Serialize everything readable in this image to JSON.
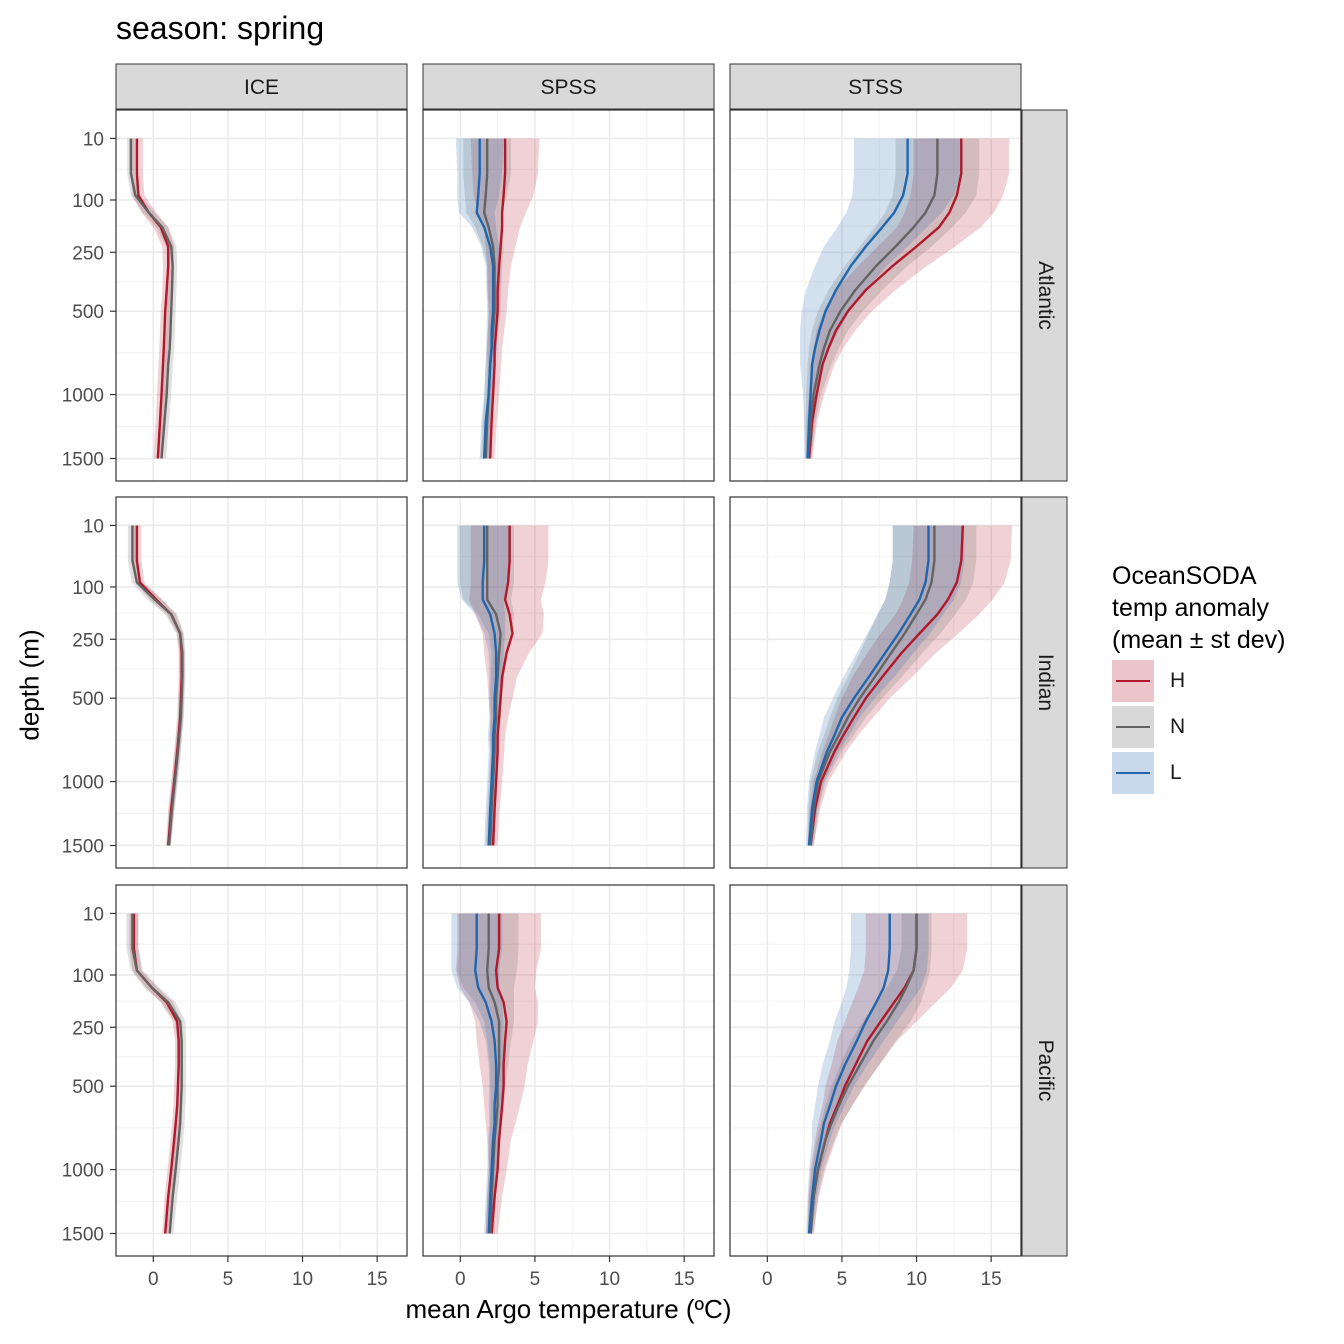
{
  "chart_data": {
    "type": "line",
    "title": "season: spring",
    "xlabel": "mean Argo temperature (ºC)",
    "ylabel": "depth (m)",
    "xlim": [
      -2.5,
      17
    ],
    "x_ticks": [
      0,
      5,
      10,
      15
    ],
    "y_scale": "sqrt",
    "y_reversed": true,
    "ylim": [
      0,
      1700
    ],
    "y_ticks": [
      10,
      100,
      250,
      500,
      1000,
      1500
    ],
    "grid": true,
    "legend_position": "right",
    "legend": {
      "title_lines": [
        "OceanSODA",
        "temp anomaly",
        "(mean ± st dev)"
      ],
      "entries": [
        {
          "key": "H",
          "label": "H",
          "color": "#b2182b"
        },
        {
          "key": "N",
          "label": "N",
          "color": "#636363"
        },
        {
          "key": "L",
          "label": "L",
          "color": "#2166ac"
        }
      ]
    },
    "facet_cols": [
      "ICE",
      "SPSS",
      "STSS"
    ],
    "facet_rows": [
      "Atlantic",
      "Indian",
      "Pacific"
    ],
    "depths": [
      10,
      50,
      90,
      130,
      170,
      230,
      300,
      400,
      500,
      600,
      700,
      800,
      1000,
      1200,
      1500
    ],
    "panels": [
      {
        "row": "Atlantic",
        "col": "ICE",
        "series": [
          {
            "name": "H",
            "mean": [
              -1.1,
              -1.1,
              -1.0,
              -0.3,
              0.5,
              1.0,
              1.0,
              0.9,
              0.8,
              0.75,
              0.7,
              0.65,
              0.55,
              0.45,
              0.3
            ],
            "sd": [
              0.4,
              0.4,
              0.4,
              0.5,
              0.5,
              0.4,
              0.35,
              0.3,
              0.3,
              0.3,
              0.3,
              0.3,
              0.3,
              0.3,
              0.3
            ]
          },
          {
            "name": "N",
            "mean": [
              -1.5,
              -1.5,
              -1.2,
              -0.3,
              0.6,
              1.2,
              1.3,
              1.25,
              1.2,
              1.15,
              1.1,
              1.0,
              0.9,
              0.75,
              0.55
            ],
            "sd": [
              0.25,
              0.25,
              0.3,
              0.4,
              0.4,
              0.35,
              0.3,
              0.3,
              0.3,
              0.3,
              0.3,
              0.3,
              0.3,
              0.3,
              0.3
            ]
          }
        ]
      },
      {
        "row": "Atlantic",
        "col": "SPSS",
        "series": [
          {
            "name": "H",
            "mean": [
              3.0,
              3.0,
              2.9,
              2.8,
              2.8,
              2.7,
              2.6,
              2.5,
              2.5,
              2.4,
              2.3,
              2.3,
              2.2,
              2.1,
              2.0
            ],
            "sd": [
              2.3,
              2.2,
              2.0,
              1.6,
              1.2,
              1.0,
              0.8,
              0.7,
              0.6,
              0.55,
              0.5,
              0.45,
              0.4,
              0.35,
              0.3
            ]
          },
          {
            "name": "N",
            "mean": [
              1.8,
              1.8,
              1.7,
              1.6,
              1.9,
              2.2,
              2.3,
              2.3,
              2.3,
              2.2,
              2.1,
              2.0,
              1.9,
              1.8,
              1.7
            ],
            "sd": [
              1.6,
              1.6,
              1.4,
              1.2,
              0.9,
              0.7,
              0.5,
              0.45,
              0.4,
              0.35,
              0.35,
              0.3,
              0.3,
              0.3,
              0.3
            ]
          },
          {
            "name": "L",
            "mean": [
              1.3,
              1.3,
              1.2,
              1.1,
              1.6,
              2.0,
              2.2,
              2.2,
              2.2,
              2.1,
              2.1,
              2.0,
              1.9,
              1.7,
              1.6
            ],
            "sd": [
              1.6,
              1.5,
              1.4,
              1.2,
              0.8,
              0.6,
              0.5,
              0.45,
              0.4,
              0.35,
              0.35,
              0.3,
              0.3,
              0.3,
              0.3
            ]
          }
        ]
      },
      {
        "row": "Atlantic",
        "col": "STSS",
        "series": [
          {
            "name": "H",
            "mean": [
              13.0,
              13.0,
              12.7,
              12.2,
              11.5,
              10.0,
              8.4,
              6.6,
              5.4,
              4.6,
              4.1,
              3.7,
              3.3,
              3.0,
              2.8
            ],
            "sd": [
              3.2,
              3.2,
              3.1,
              3.0,
              2.8,
              2.6,
              2.3,
              2.0,
              1.6,
              1.3,
              1.0,
              0.8,
              0.5,
              0.35,
              0.2
            ]
          },
          {
            "name": "N",
            "mean": [
              11.4,
              11.4,
              11.2,
              10.6,
              9.8,
              8.6,
              7.3,
              5.9,
              4.9,
              4.2,
              3.8,
              3.5,
              3.1,
              2.9,
              2.75
            ],
            "sd": [
              2.8,
              2.8,
              2.8,
              2.7,
              2.6,
              2.4,
              2.1,
              1.8,
              1.5,
              1.2,
              1.0,
              0.8,
              0.5,
              0.35,
              0.2
            ]
          },
          {
            "name": "L",
            "mean": [
              9.4,
              9.4,
              9.1,
              8.5,
              7.7,
              6.6,
              5.6,
              4.6,
              3.9,
              3.5,
              3.2,
              3.0,
              2.9,
              2.8,
              2.7
            ],
            "sd": [
              3.6,
              3.6,
              3.4,
              3.2,
              3.0,
              2.8,
              2.4,
              2.0,
              1.6,
              1.3,
              1.0,
              0.8,
              0.5,
              0.35,
              0.2
            ]
          }
        ]
      },
      {
        "row": "Indian",
        "col": "ICE",
        "series": [
          {
            "name": "H",
            "mean": [
              -1.1,
              -1.1,
              -0.9,
              0.2,
              1.2,
              1.8,
              1.9,
              1.9,
              1.85,
              1.8,
              1.7,
              1.6,
              1.4,
              1.2,
              1.0
            ],
            "sd": [
              0.3,
              0.3,
              0.3,
              0.4,
              0.3,
              0.2,
              0.2,
              0.2,
              0.2,
              0.2,
              0.2,
              0.2,
              0.2,
              0.2,
              0.15
            ]
          },
          {
            "name": "N",
            "mean": [
              -1.4,
              -1.4,
              -1.1,
              0.1,
              1.2,
              1.8,
              1.95,
              1.95,
              1.9,
              1.85,
              1.75,
              1.65,
              1.45,
              1.25,
              1.05
            ],
            "sd": [
              0.3,
              0.3,
              0.35,
              0.5,
              0.4,
              0.25,
              0.2,
              0.2,
              0.2,
              0.2,
              0.2,
              0.2,
              0.2,
              0.2,
              0.15
            ]
          }
        ]
      },
      {
        "row": "Indian",
        "col": "SPSS",
        "series": [
          {
            "name": "H",
            "mean": [
              3.3,
              3.3,
              3.2,
              3.0,
              3.3,
              3.5,
              3.1,
              2.8,
              2.7,
              2.6,
              2.5,
              2.5,
              2.4,
              2.3,
              2.2
            ],
            "sd": [
              2.6,
              2.6,
              2.5,
              2.4,
              2.3,
              2.0,
              1.5,
              1.0,
              0.8,
              0.6,
              0.5,
              0.45,
              0.4,
              0.35,
              0.3
            ]
          },
          {
            "name": "N",
            "mean": [
              1.8,
              1.8,
              1.8,
              1.8,
              2.4,
              2.7,
              2.6,
              2.5,
              2.4,
              2.4,
              2.3,
              2.3,
              2.2,
              2.1,
              2.0
            ],
            "sd": [
              1.8,
              1.8,
              1.8,
              1.6,
              1.2,
              0.8,
              0.5,
              0.45,
              0.4,
              0.35,
              0.35,
              0.3,
              0.3,
              0.3,
              0.3
            ]
          },
          {
            "name": "L",
            "mean": [
              1.6,
              1.6,
              1.5,
              1.5,
              2.0,
              2.3,
              2.4,
              2.4,
              2.3,
              2.3,
              2.2,
              2.2,
              2.1,
              2.0,
              1.9
            ],
            "sd": [
              1.8,
              1.8,
              1.7,
              1.4,
              1.0,
              0.7,
              0.5,
              0.45,
              0.4,
              0.35,
              0.35,
              0.3,
              0.3,
              0.3,
              0.3
            ]
          }
        ]
      },
      {
        "row": "Indian",
        "col": "STSS",
        "series": [
          {
            "name": "H",
            "mean": [
              13.1,
              13.0,
              12.7,
              12.1,
              11.4,
              10.2,
              9.0,
              7.7,
              6.6,
              5.8,
              5.1,
              4.5,
              3.6,
              3.2,
              2.9
            ],
            "sd": [
              3.3,
              3.3,
              3.2,
              3.0,
              2.8,
              2.6,
              2.3,
              2.0,
              1.6,
              1.3,
              1.0,
              0.8,
              0.5,
              0.35,
              0.2
            ]
          },
          {
            "name": "N",
            "mean": [
              11.2,
              11.2,
              11.0,
              10.6,
              10.0,
              9.2,
              8.3,
              7.2,
              6.2,
              5.4,
              4.8,
              4.2,
              3.4,
              3.1,
              2.9
            ],
            "sd": [
              2.8,
              2.8,
              2.8,
              2.7,
              2.6,
              2.4,
              2.1,
              1.8,
              1.5,
              1.2,
              1.0,
              0.8,
              0.5,
              0.35,
              0.2
            ]
          },
          {
            "name": "L",
            "mean": [
              10.8,
              10.8,
              10.6,
              10.2,
              9.6,
              8.8,
              7.9,
              6.8,
              5.8,
              5.0,
              4.5,
              4.0,
              3.3,
              3.0,
              2.8
            ],
            "sd": [
              2.4,
              2.4,
              2.4,
              2.3,
              2.2,
              2.1,
              1.9,
              1.7,
              1.4,
              1.2,
              1.0,
              0.8,
              0.5,
              0.35,
              0.2
            ]
          }
        ]
      },
      {
        "row": "Pacific",
        "col": "ICE",
        "series": [
          {
            "name": "H",
            "mean": [
              -1.3,
              -1.3,
              -1.1,
              -0.1,
              0.9,
              1.6,
              1.7,
              1.7,
              1.65,
              1.6,
              1.5,
              1.4,
              1.2,
              1.0,
              0.8
            ],
            "sd": [
              0.3,
              0.3,
              0.3,
              0.4,
              0.4,
              0.3,
              0.25,
              0.25,
              0.25,
              0.25,
              0.25,
              0.25,
              0.25,
              0.25,
              0.2
            ]
          },
          {
            "name": "N",
            "mean": [
              -1.4,
              -1.4,
              -1.1,
              -0.1,
              1.0,
              1.8,
              1.9,
              1.9,
              1.9,
              1.85,
              1.8,
              1.7,
              1.5,
              1.3,
              1.1
            ],
            "sd": [
              0.4,
              0.4,
              0.4,
              0.5,
              0.5,
              0.35,
              0.3,
              0.3,
              0.3,
              0.3,
              0.3,
              0.3,
              0.3,
              0.3,
              0.25
            ]
          }
        ]
      },
      {
        "row": "Pacific",
        "col": "SPSS",
        "series": [
          {
            "name": "H",
            "mean": [
              2.6,
              2.6,
              2.4,
              2.5,
              2.9,
              3.1,
              3.0,
              2.9,
              2.9,
              2.8,
              2.7,
              2.6,
              2.5,
              2.3,
              2.1
            ],
            "sd": [
              2.8,
              2.8,
              2.7,
              2.5,
              2.3,
              2.1,
              1.9,
              1.6,
              1.4,
              1.2,
              1.0,
              0.8,
              0.6,
              0.5,
              0.4
            ]
          },
          {
            "name": "N",
            "mean": [
              1.9,
              1.9,
              1.8,
              1.9,
              2.3,
              2.6,
              2.6,
              2.6,
              2.5,
              2.5,
              2.4,
              2.3,
              2.2,
              2.1,
              2.0
            ],
            "sd": [
              2.0,
              2.0,
              2.0,
              1.7,
              1.3,
              1.0,
              0.8,
              0.6,
              0.5,
              0.45,
              0.4,
              0.35,
              0.3,
              0.3,
              0.3
            ]
          },
          {
            "name": "L",
            "mean": [
              1.1,
              1.1,
              1.0,
              1.2,
              1.7,
              2.1,
              2.3,
              2.4,
              2.4,
              2.3,
              2.3,
              2.2,
              2.1,
              2.0,
              1.9
            ],
            "sd": [
              1.7,
              1.7,
              1.6,
              1.4,
              1.1,
              0.8,
              0.6,
              0.5,
              0.45,
              0.4,
              0.35,
              0.35,
              0.3,
              0.3,
              0.3
            ]
          }
        ]
      },
      {
        "row": "Pacific",
        "col": "STSS",
        "series": [
          {
            "name": "H",
            "mean": [
              10.0,
              10.0,
              9.8,
              9.2,
              8.5,
              7.6,
              6.7,
              5.9,
              5.2,
              4.7,
              4.2,
              3.9,
              3.4,
              3.1,
              2.9
            ],
            "sd": [
              3.4,
              3.4,
              3.3,
              3.1,
              2.8,
              2.4,
              2.0,
              1.6,
              1.3,
              1.0,
              0.8,
              0.7,
              0.5,
              0.35,
              0.2
            ]
          },
          {
            "name": "N",
            "mean": [
              10.0,
              10.0,
              9.8,
              9.3,
              8.8,
              8.0,
              7.1,
              6.2,
              5.4,
              4.8,
              4.3,
              3.9,
              3.4,
              3.1,
              2.9
            ],
            "sd": [
              1.0,
              1.0,
              1.1,
              1.3,
              1.5,
              1.6,
              1.5,
              1.3,
              1.1,
              0.9,
              0.7,
              0.6,
              0.4,
              0.3,
              0.2
            ]
          },
          {
            "name": "L",
            "mean": [
              8.2,
              8.2,
              8.1,
              7.8,
              7.3,
              6.6,
              6.0,
              5.2,
              4.6,
              4.2,
              3.8,
              3.6,
              3.2,
              3.0,
              2.8
            ],
            "sd": [
              2.6,
              2.6,
              2.6,
              2.5,
              2.3,
              2.1,
              1.8,
              1.5,
              1.2,
              1.0,
              0.8,
              0.6,
              0.4,
              0.3,
              0.2
            ]
          }
        ]
      }
    ]
  }
}
